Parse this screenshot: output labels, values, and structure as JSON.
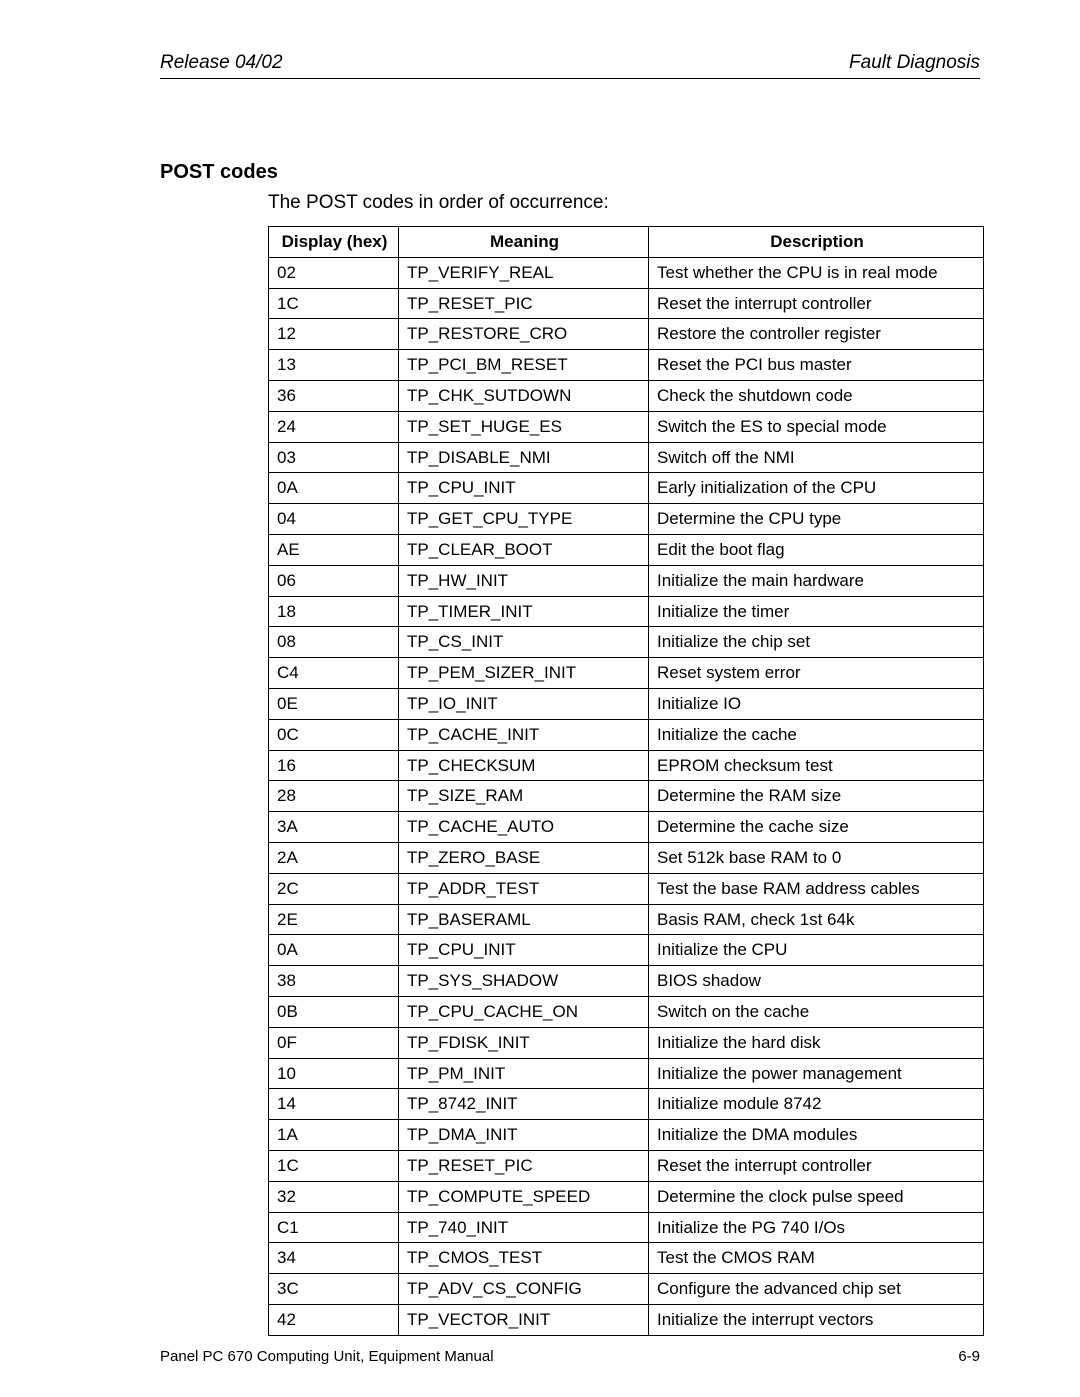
{
  "header": {
    "left": "Release 04/02",
    "right": "Fault Diagnosis"
  },
  "section_title": "POST codes",
  "intro_text": "The POST codes in order of occurrence:",
  "table": {
    "columns": [
      "Display (hex)",
      "Meaning",
      "Description"
    ],
    "rows": [
      [
        "02",
        "TP_VERIFY_REAL",
        "Test whether the CPU is in real mode"
      ],
      [
        "1C",
        "TP_RESET_PIC",
        "Reset the interrupt controller"
      ],
      [
        "12",
        "TP_RESTORE_CRO",
        "Restore the controller register"
      ],
      [
        "13",
        "TP_PCI_BM_RESET",
        "Reset the PCI bus master"
      ],
      [
        "36",
        "TP_CHK_SUTDOWN",
        "Check the shutdown code"
      ],
      [
        "24",
        "TP_SET_HUGE_ES",
        "Switch the ES to special mode"
      ],
      [
        "03",
        "TP_DISABLE_NMI",
        "Switch off the NMI"
      ],
      [
        "0A",
        "TP_CPU_INIT",
        "Early initialization of the CPU"
      ],
      [
        "04",
        "TP_GET_CPU_TYPE",
        "Determine the CPU type"
      ],
      [
        "AE",
        "TP_CLEAR_BOOT",
        "Edit the boot flag"
      ],
      [
        "06",
        "TP_HW_INIT",
        "Initialize the main hardware"
      ],
      [
        "18",
        "TP_TIMER_INIT",
        "Initialize the timer"
      ],
      [
        "08",
        "TP_CS_INIT",
        "Initialize the chip set"
      ],
      [
        "C4",
        "TP_PEM_SIZER_INIT",
        "Reset system error"
      ],
      [
        "0E",
        "TP_IO_INIT",
        "Initialize IO"
      ],
      [
        "0C",
        "TP_CACHE_INIT",
        "Initialize the cache"
      ],
      [
        "16",
        "TP_CHECKSUM",
        "EPROM checksum test"
      ],
      [
        "28",
        "TP_SIZE_RAM",
        "Determine the RAM size"
      ],
      [
        "3A",
        "TP_CACHE_AUTO",
        "Determine the cache size"
      ],
      [
        "2A",
        "TP_ZERO_BASE",
        "Set 512k base RAM to 0"
      ],
      [
        "2C",
        "TP_ADDR_TEST",
        "Test the base RAM address cables"
      ],
      [
        "2E",
        "TP_BASERAML",
        "Basis RAM, check 1st 64k"
      ],
      [
        "0A",
        "TP_CPU_INIT",
        "Initialize the CPU"
      ],
      [
        "38",
        "TP_SYS_SHADOW",
        "BIOS shadow"
      ],
      [
        "0B",
        "TP_CPU_CACHE_ON",
        "Switch on the cache"
      ],
      [
        "0F",
        "TP_FDISK_INIT",
        "Initialize the hard disk"
      ],
      [
        "10",
        "TP_PM_INIT",
        "Initialize the power management"
      ],
      [
        "14",
        "TP_8742_INIT",
        "Initialize module 8742"
      ],
      [
        "1A",
        "TP_DMA_INIT",
        "Initialize the DMA modules"
      ],
      [
        "1C",
        "TP_RESET_PIC",
        "Reset the interrupt controller"
      ],
      [
        "32",
        "TP_COMPUTE_SPEED",
        "Determine the clock pulse speed"
      ],
      [
        "C1",
        "TP_740_INIT",
        "Initialize the PG 740 I/Os"
      ],
      [
        "34",
        "TP_CMOS_TEST",
        "Test the CMOS RAM"
      ],
      [
        "3C",
        "TP_ADV_CS_CONFIG",
        "Configure the advanced chip set"
      ],
      [
        "42",
        "TP_VECTOR_INIT",
        "Initialize the interrupt vectors"
      ]
    ]
  },
  "footer": {
    "left": "Panel PC 670 Computing Unit, Equipment Manual",
    "right": "6-9"
  }
}
